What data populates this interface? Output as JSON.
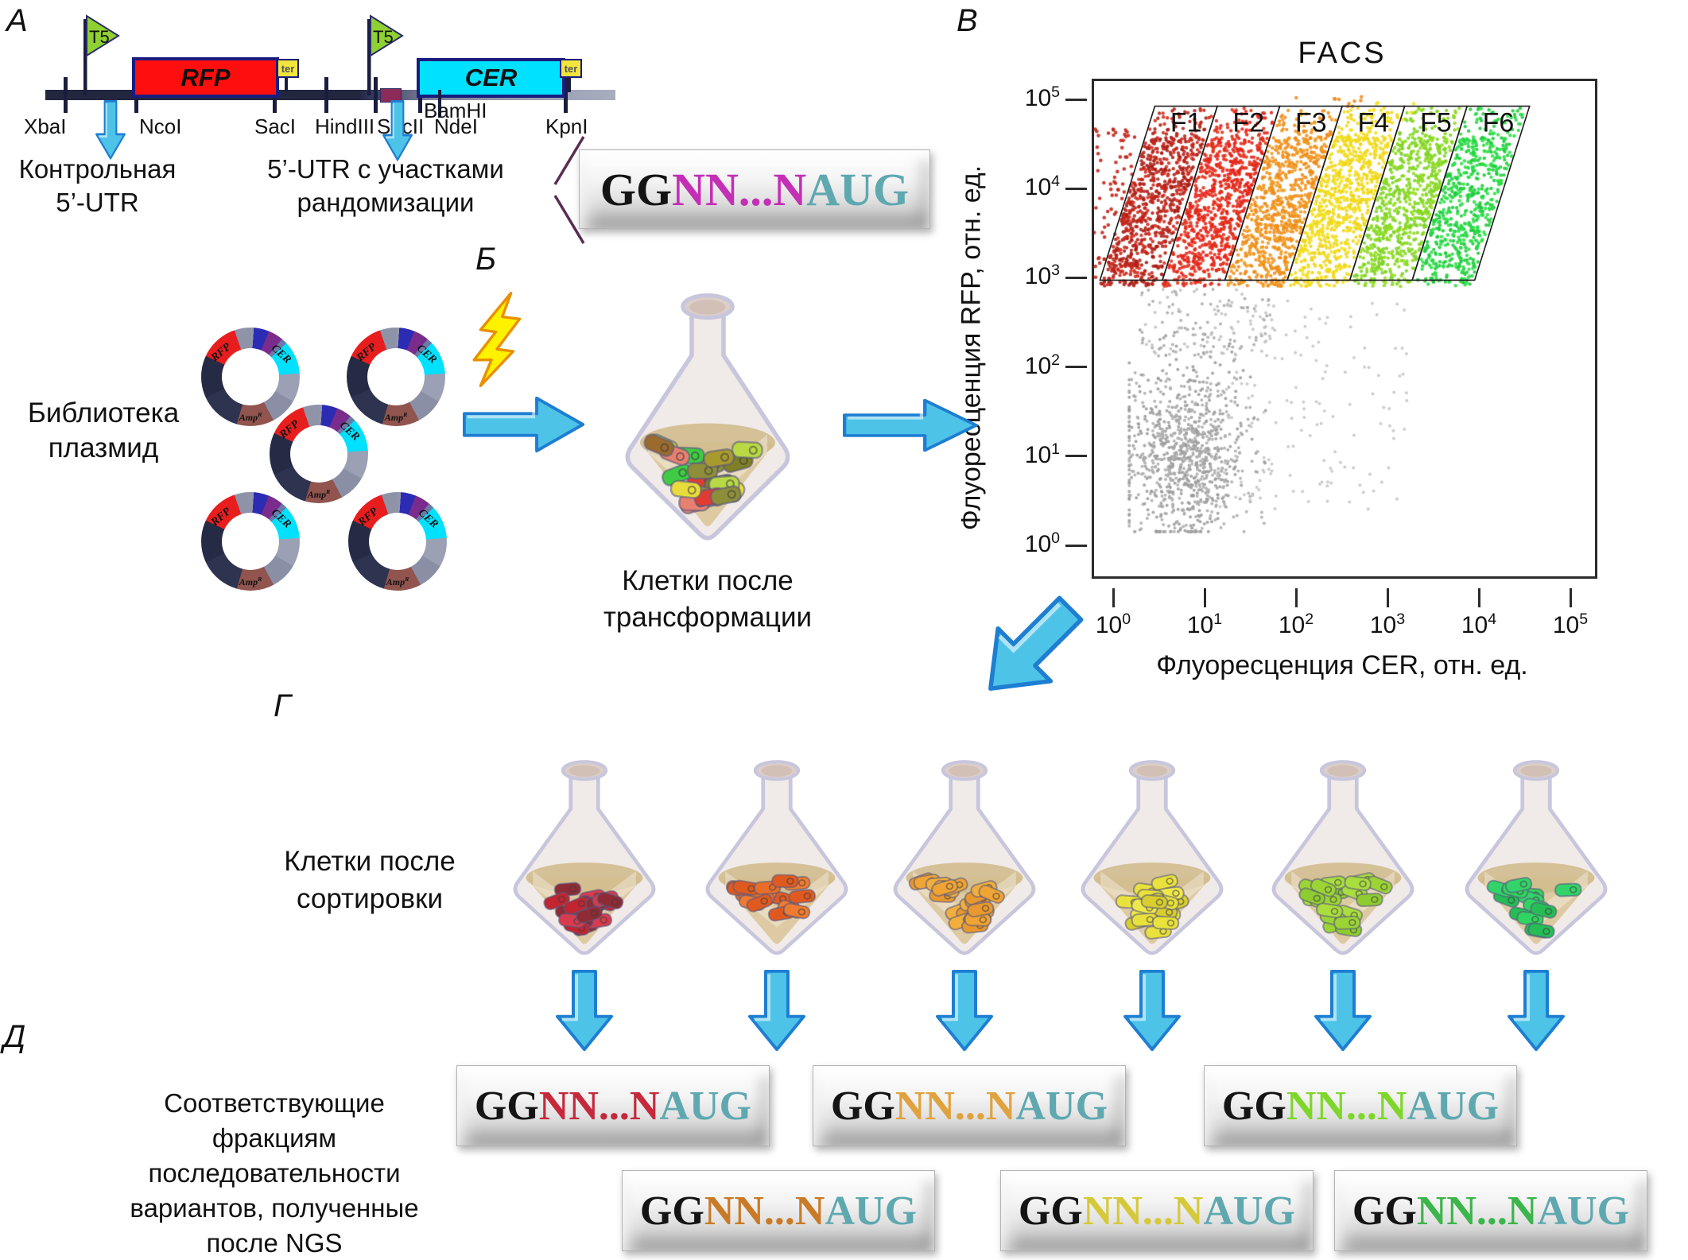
{
  "panel_labels": {
    "a": "А",
    "b": "Б",
    "v": "В",
    "g": "Г",
    "d": "Д"
  },
  "construct": {
    "promoter": "T5",
    "terminator": "ter",
    "gene_rfp": "RFP",
    "gene_cer": "CER",
    "sites": [
      "XbaI",
      "NcoI",
      "SacI",
      "HindIII",
      "SacII",
      "NdeI",
      "KpnI"
    ],
    "site_bamhi": "BamHI",
    "control_utr_line1": "Контрольная",
    "control_utr_line2": "5’-UTR",
    "random_utr_line1": "5’-UTR с участками",
    "random_utr_line2": "рандомизации",
    "colors": {
      "rfp_fill": "#FF0E0E",
      "cer_fill": "#00E0FF",
      "flag_fill": "#8FD032",
      "flag_edge": "#2A2A6E",
      "ter_fill": "#F2E53C",
      "backbone_dark": "#23263F",
      "backbone_light": "#A9ADC0",
      "insert_navy": "#3A3E66",
      "insert_maroon": "#8C2B5A",
      "tick": "#1A1D3D"
    }
  },
  "library": {
    "label_line1": "Библиотека",
    "label_line2": "плазмид",
    "plasmid": {
      "gene_rfp": "RFP",
      "gene_cer": "CER",
      "amp_base": "Amp",
      "amp_sup": "R",
      "segments": [
        {
          "color": "#9096AC",
          "from": 0,
          "to": 4
        },
        {
          "color": "#2B2BB4",
          "from": 4,
          "to": 22
        },
        {
          "color": "#7A2C8C",
          "from": 22,
          "to": 40
        },
        {
          "color": "#6B7BA8",
          "from": 40,
          "to": 47
        },
        {
          "color": "#00E0FF",
          "from": 47,
          "to": 86
        },
        {
          "color": "#9BA0B4",
          "from": 86,
          "to": 120
        },
        {
          "color": "#8A8FA6",
          "from": 120,
          "to": 152
        },
        {
          "color": "#91544E",
          "from": 152,
          "to": 196
        },
        {
          "color": "#2E3350",
          "from": 196,
          "to": 245
        },
        {
          "color": "#262B45",
          "from": 245,
          "to": 295
        },
        {
          "color": "#E81E1E",
          "from": 295,
          "to": 341
        },
        {
          "color": "#8E93A8",
          "from": 341,
          "to": 360
        }
      ]
    }
  },
  "transformation": {
    "label_line1": "Клетки после",
    "label_line2": "трансформации",
    "cell_colors": [
      "#A89B2E",
      "#7E7F26",
      "#E03C34",
      "#E88070",
      "#E87E2E",
      "#E8DC3C",
      "#B8D844",
      "#3FCB44",
      "#9B6B2E",
      "#8E8E3A"
    ],
    "cell_count": 26
  },
  "sorting": {
    "label_line1": "Клетки после",
    "label_line2": "сортировки"
  },
  "fractions": [
    {
      "name": "F1",
      "facs_color": "#A81E14",
      "cell_colors": [
        "#D93A4E",
        "#8F2B34",
        "#C22430"
      ],
      "cell_count": 20,
      "seq_variable_color": "#C4293C"
    },
    {
      "name": "F2",
      "facs_color": "#E8221A",
      "cell_colors": [
        "#F07B30",
        "#E05A20",
        "#E86E28"
      ],
      "cell_count": 18,
      "seq_variable_color": "#C87A28"
    },
    {
      "name": "F3",
      "facs_color": "#EF8C1C",
      "cell_colors": [
        "#F2AE3C",
        "#E8982E",
        "#F0A434"
      ],
      "cell_count": 20,
      "seq_variable_color": "#E0A23E"
    },
    {
      "name": "F4",
      "facs_color": "#F2DF1A",
      "cell_colors": [
        "#E9E13C",
        "#D8CF2E",
        "#EFE84A"
      ],
      "cell_count": 18,
      "seq_variable_color": "#D5C93A"
    },
    {
      "name": "F5",
      "facs_color": "#8EDC20",
      "cell_colors": [
        "#AADD3E",
        "#8FCC2F",
        "#9CD436"
      ],
      "cell_count": 20,
      "seq_variable_color": "#7FD62A"
    },
    {
      "name": "F6",
      "facs_color": "#1ECC3A",
      "cell_colors": [
        "#33D36A",
        "#26BD55",
        "#2FD55E"
      ],
      "cell_count": 13,
      "seq_variable_color": "#3CB54A"
    }
  ],
  "sequence": {
    "prefix": "GG",
    "variable": "NN...N",
    "suffix": "AUG",
    "prefix_color": "#141414",
    "suffix_color": "#5FA8B0",
    "top_variable_color": "#C32FB5"
  },
  "ngs_caption": {
    "lines": [
      "Соответствующие",
      "фракциям",
      "последовательности",
      "вариантов, полученные",
      "после NGS"
    ]
  },
  "chart_data": {
    "type": "scatter",
    "title": "FACS",
    "xlabel": "Флуоресценция CER, отн. ед.",
    "ylabel": "Флуоресценция RFP, отн. ед.",
    "x_scale": "log",
    "y_scale": "log",
    "x_exponents": [
      0,
      1,
      2,
      3,
      4,
      5
    ],
    "y_exponents": [
      0,
      1,
      2,
      3,
      4,
      5
    ],
    "xlim_decades": [
      -0.26,
      5.24
    ],
    "ylim_decades": [
      -0.32,
      5.23
    ],
    "grid": false,
    "legend": "none",
    "gates": {
      "names": [
        "F1",
        "F2",
        "F3",
        "F4",
        "F5",
        "F6"
      ],
      "colors": [
        "#A81E14",
        "#E8221A",
        "#EF8C1C",
        "#F2DF1A",
        "#8EDC20",
        "#1ECC3A"
      ],
      "y_bottom": 3.0,
      "y_top": 4.95,
      "x_bottom_start": -0.17,
      "width": 0.683,
      "slant": 0.6
    },
    "clusters": [
      {
        "kind": "gate",
        "gate": 0,
        "n": 720,
        "colors": [
          "#A81E14",
          "#B3221A",
          "#D22A1C"
        ],
        "r": 2.2
      },
      {
        "kind": "gate",
        "gate": 1,
        "n": 780,
        "colors": [
          "#E8221A",
          "#E03018"
        ],
        "r": 2.2
      },
      {
        "kind": "gate",
        "gate": 2,
        "n": 780,
        "colors": [
          "#EF8C1C",
          "#F0991E"
        ],
        "r": 2.2
      },
      {
        "kind": "gate",
        "gate": 3,
        "n": 780,
        "colors": [
          "#F2DF1A",
          "#EFD51E"
        ],
        "r": 2.2
      },
      {
        "kind": "gate",
        "gate": 4,
        "n": 740,
        "colors": [
          "#8EDC20",
          "#7ED428"
        ],
        "r": 2.2
      },
      {
        "kind": "gate",
        "gate": 5,
        "n": 620,
        "colors": [
          "#1ECC3A",
          "#2ADF46"
        ],
        "r": 2.2
      },
      {
        "kind": "box",
        "n": 150,
        "x": [
          -0.3,
          0.55
        ],
        "y": [
          3.0,
          4.7
        ],
        "colors": [
          "#C42318"
        ],
        "r": 2.3
      },
      {
        "kind": "box",
        "n": 10,
        "x": [
          1.95,
          2.8
        ],
        "y": [
          4.88,
          5.06
        ],
        "colors": [
          "#EF8C1C"
        ],
        "r": 2.3
      },
      {
        "kind": "box",
        "n": 8,
        "x": [
          2.75,
          3.3
        ],
        "y": [
          4.78,
          5.02
        ],
        "colors": [
          "#F2DF1A"
        ],
        "r": 2.3
      },
      {
        "kind": "gauss",
        "n": 1000,
        "cx": 0.78,
        "cy": 1.05,
        "sx": 0.34,
        "sy": 0.52,
        "clipx": [
          0.15,
          3.3
        ],
        "clipy": [
          0.18,
          2.92
        ],
        "colors": [
          "#9C9C9C",
          "#ADADAD"
        ],
        "r": 2.0
      },
      {
        "kind": "box",
        "n": 150,
        "x": [
          1.1,
          3.2
        ],
        "y": [
          0.4,
          2.8
        ],
        "colors": [
          "#C6C6C6"
        ],
        "r": 2.0
      },
      {
        "kind": "box",
        "n": 130,
        "x": [
          0.28,
          1.75
        ],
        "y": [
          2.15,
          2.9
        ],
        "colors": [
          "#ABABAB",
          "#C0C0C0"
        ],
        "r": 2.0
      }
    ]
  },
  "arrow_colors": {
    "fill": "#4EC3E8",
    "edge": "#1E7ED2"
  },
  "lightning_colors": {
    "fill": "#FFF200",
    "edge": "#E89000"
  }
}
